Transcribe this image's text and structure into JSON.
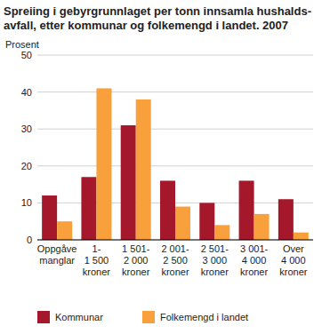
{
  "chart_data": {
    "type": "bar",
    "title": "Spreiing i gebyrgrunnlaget per tonn innsamla hushalds-\navfall, etter kommunar og folkemengd i landet. 2007",
    "y_label": "Prosent",
    "categories": [
      "Oppgåve\nmanglar",
      "1-\n1 500\nkroner",
      "1 501-\n2 000\nkroner",
      "2 001-\n2 500\nkroner",
      "2 501-\n3 000\nkroner",
      "3 001-\n4 000\nkroner",
      "Over\n4 000\nkroner"
    ],
    "series": [
      {
        "name": "Kommunar",
        "color": "#a5182b",
        "values": [
          12,
          17,
          31,
          16,
          10,
          16,
          11
        ]
      },
      {
        "name": "Folkemengd i landet",
        "color": "#f8a13c",
        "values": [
          5,
          41,
          38,
          9,
          4,
          7,
          2
        ]
      }
    ],
    "ylim": [
      0,
      50
    ],
    "yticks": [
      0,
      10,
      20,
      30,
      40,
      50
    ],
    "grid": true,
    "legend": "bottom"
  }
}
